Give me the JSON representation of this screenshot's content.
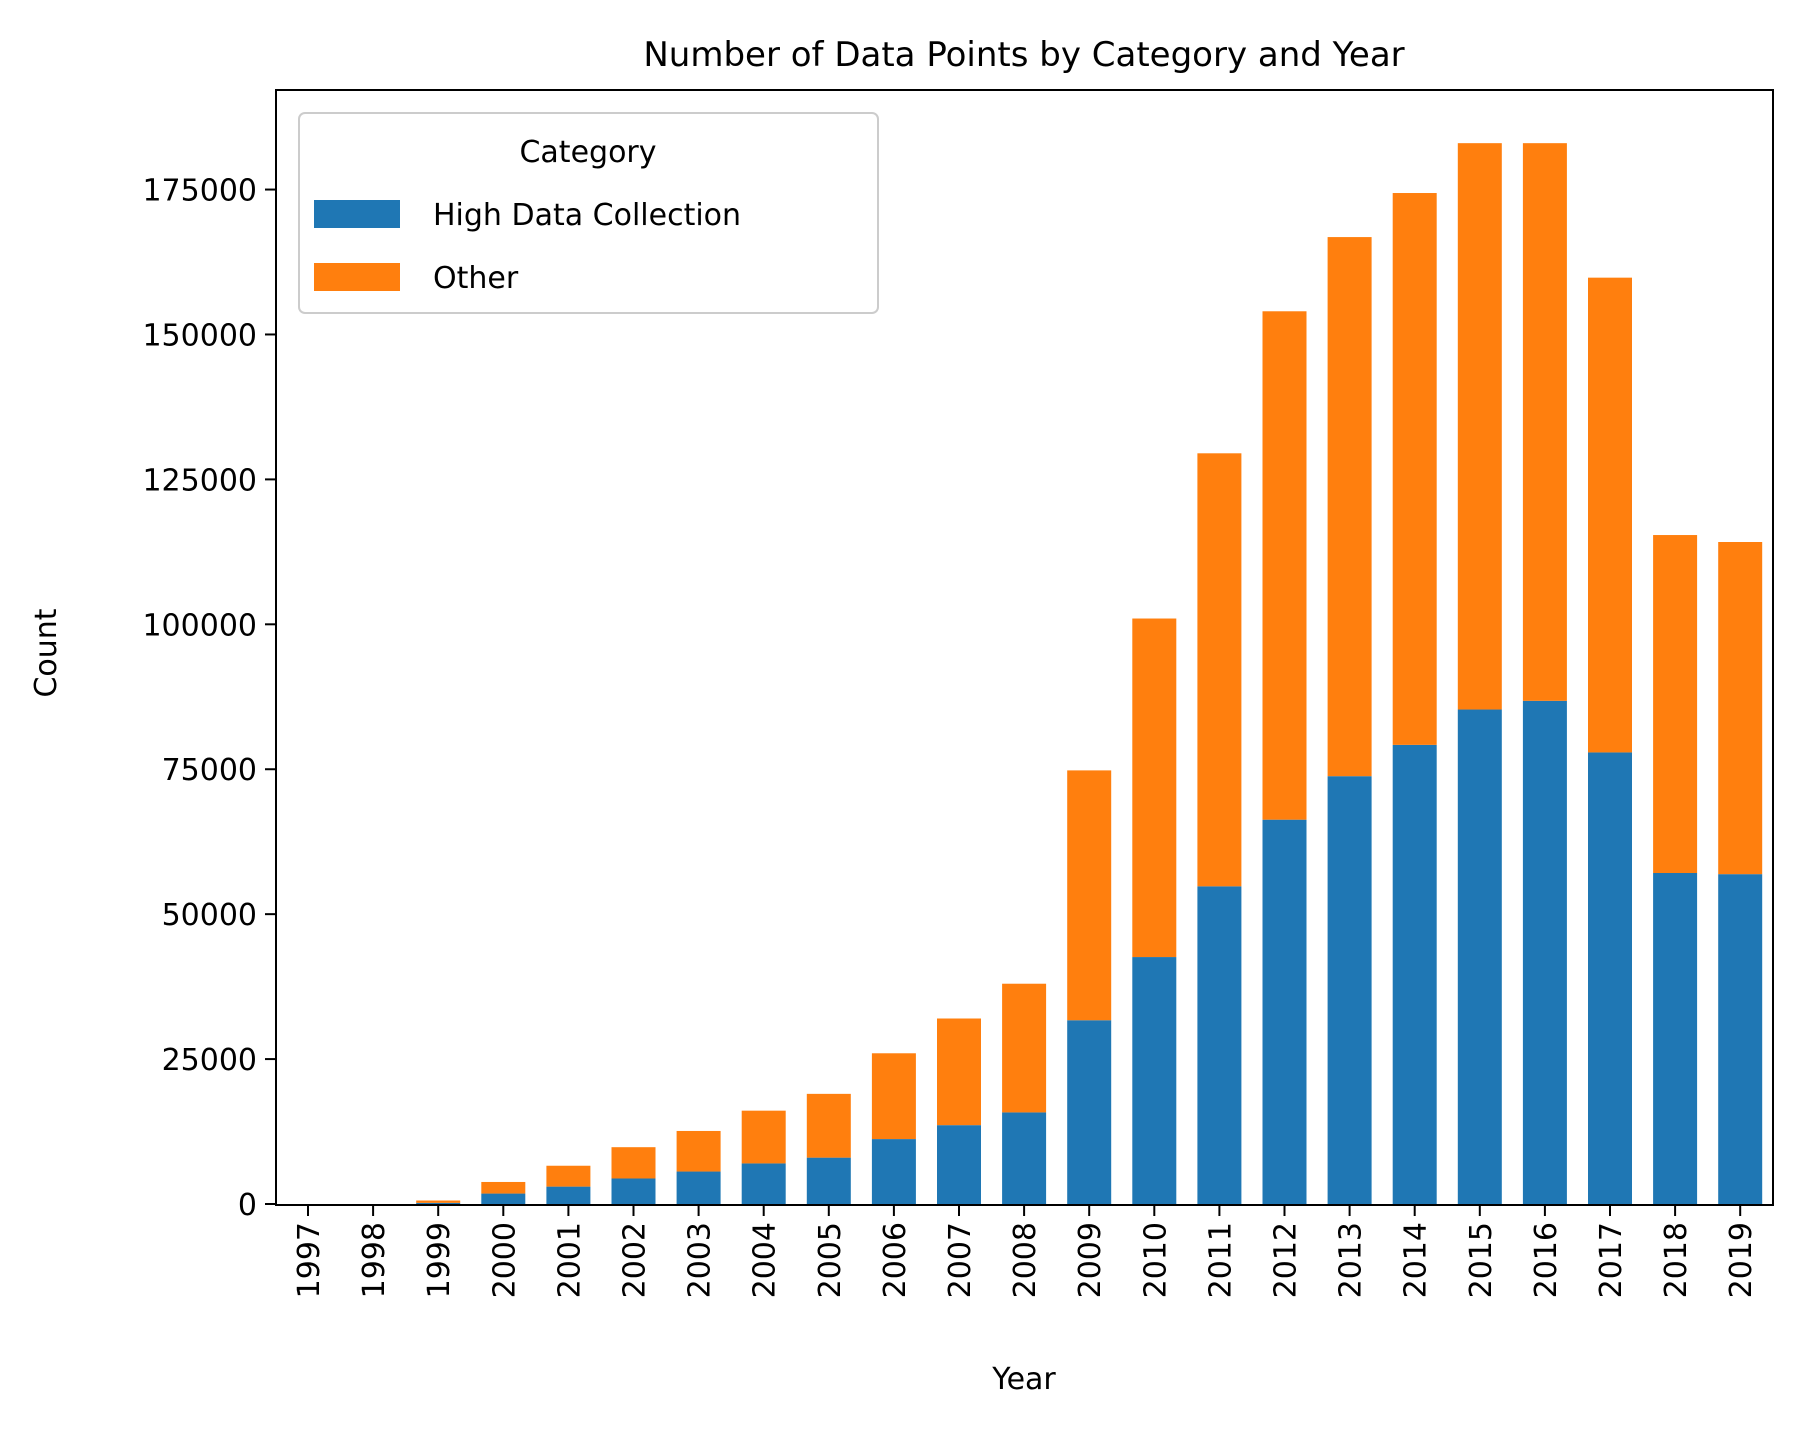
{
  "chart_data": {
    "type": "bar",
    "stacked": true,
    "title": "Number of Data Points by Category and Year",
    "xlabel": "Year",
    "ylabel": "Count",
    "categories": [
      "1997",
      "1998",
      "1999",
      "2000",
      "2001",
      "2002",
      "2003",
      "2004",
      "2005",
      "2006",
      "2007",
      "2008",
      "2009",
      "2010",
      "2011",
      "2012",
      "2013",
      "2014",
      "2015",
      "2016",
      "2017",
      "2018",
      "2019"
    ],
    "series": [
      {
        "name": "High Data Collection",
        "color": "#1f77b4",
        "values": [
          0,
          0,
          200,
          1800,
          3000,
          4400,
          5600,
          7000,
          8000,
          11200,
          13600,
          15800,
          31700,
          42600,
          54800,
          66300,
          73800,
          79200,
          85300,
          86800,
          77900,
          57100,
          56900
        ]
      },
      {
        "name": "Other",
        "color": "#ff7f0e",
        "values": [
          0,
          0,
          400,
          2000,
          3600,
          5400,
          7000,
          9100,
          11000,
          14800,
          18400,
          22200,
          43100,
          58400,
          74700,
          87700,
          93000,
          95200,
          97700,
          96200,
          81900,
          58300,
          57300
        ]
      }
    ],
    "ylim": [
      0,
      192000
    ],
    "yticks": [
      0,
      25000,
      50000,
      75000,
      100000,
      125000,
      150000,
      175000
    ],
    "legend": {
      "title": "Category",
      "position": "top-left"
    },
    "grid": false
  }
}
